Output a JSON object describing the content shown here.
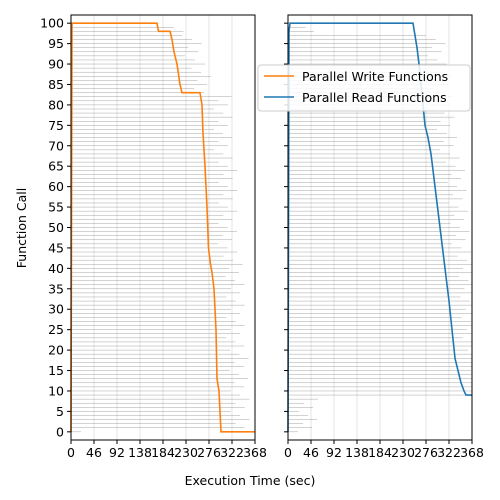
{
  "chart_data": {
    "type": "line",
    "xlabel": "Execution Time (sec)",
    "ylabel": "Function Call",
    "x_ticks": [
      0,
      46,
      92,
      138,
      184,
      230,
      276,
      322,
      368
    ],
    "y_ticks": [
      0,
      5,
      10,
      15,
      20,
      25,
      30,
      35,
      40,
      45,
      50,
      55,
      60,
      65,
      70,
      75,
      80,
      85,
      90,
      95,
      100
    ],
    "xlim": [
      0,
      368
    ],
    "ylim": [
      -2,
      102
    ],
    "grid": "x",
    "legend_position": "upper-right",
    "series": [
      {
        "name": "Parallel Write Functions",
        "color": "#ff7f0e",
        "x": [
          0,
          2,
          4,
          172,
          175,
          198,
          202,
          206,
          212,
          218,
          222,
          226,
          258,
          262,
          264,
          268,
          272,
          275,
          279,
          282,
          286,
          290,
          292,
          296,
          300,
          304,
          368
        ],
        "y": [
          0,
          100,
          100,
          100,
          98,
          98,
          96,
          93,
          90,
          85,
          83,
          83,
          83,
          80,
          73,
          65,
          55,
          45,
          41,
          39,
          35,
          25,
          13,
          10,
          0,
          0,
          0
        ]
      },
      {
        "name": "Parallel Read Functions",
        "color": "#1f77b4",
        "x": [
          0,
          2,
          4,
          250,
          254,
          258,
          262,
          266,
          270,
          274,
          280,
          286,
          292,
          298,
          304,
          310,
          316,
          322,
          328,
          334,
          340,
          346,
          352,
          356,
          360,
          368
        ],
        "y": [
          0,
          98,
          100,
          100,
          97,
          94,
          90,
          85,
          80,
          75,
          72,
          68,
          62,
          56,
          50,
          44,
          38,
          32,
          25,
          18,
          15,
          12,
          10,
          9,
          9,
          9
        ]
      }
    ]
  }
}
